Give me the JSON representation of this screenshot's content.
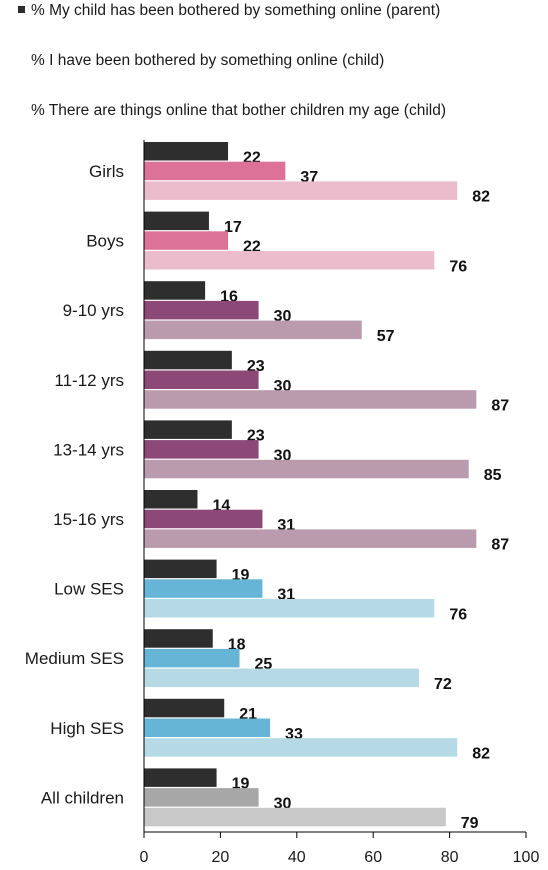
{
  "chart_data": {
    "type": "bar",
    "orientation": "horizontal",
    "categories": [
      "Girls",
      "Boys",
      "9-10 yrs",
      "11-12 yrs",
      "13-14 yrs",
      "15-16 yrs",
      "Low SES",
      "Medium SES",
      "High SES",
      "All children"
    ],
    "series": [
      {
        "name": "% My child has been bothered by something online (parent)",
        "values": [
          22,
          17,
          16,
          23,
          23,
          14,
          19,
          18,
          21,
          19
        ]
      },
      {
        "name": "% I have been bothered by something online (child)",
        "values": [
          37,
          22,
          30,
          30,
          30,
          31,
          31,
          25,
          33,
          30
        ]
      },
      {
        "name": "% There are things online that bother children my age (child)",
        "values": [
          82,
          76,
          57,
          87,
          85,
          87,
          76,
          72,
          82,
          79
        ]
      }
    ],
    "xlim": [
      0,
      100
    ],
    "xticks": [
      "0",
      "20",
      "40",
      "60",
      "80",
      "100"
    ],
    "legend_position": "top",
    "colors": {
      "parent": "#2e2e2e",
      "child_by_group": {
        "gender": [
          "#dd7298",
          "#ebbccb"
        ],
        "age": [
          "#8c4877",
          "#b99bad"
        ],
        "ses": [
          "#66b5d6",
          "#b6d9e6"
        ],
        "all": [
          "#a7a7a7",
          "#c8c8c8"
        ]
      }
    },
    "category_groups": [
      "gender",
      "gender",
      "age",
      "age",
      "age",
      "age",
      "ses",
      "ses",
      "ses",
      "all"
    ]
  }
}
